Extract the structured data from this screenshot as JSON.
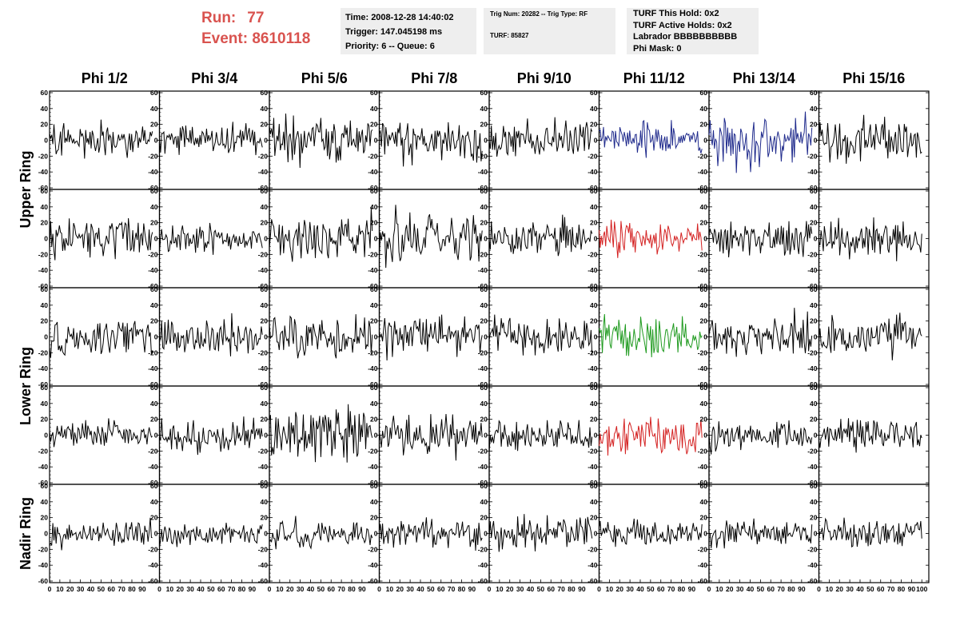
{
  "header": {
    "run_label": "Run:",
    "run_value": "77",
    "event_label": "Event:",
    "event_value": "8610118",
    "time": "Time: 2008-12-28 14:40:02",
    "trigger": "Trigger: 147.045198 ms",
    "priority": "Priority: 6 -- Queue: 6",
    "trig_num": "Trig Num: 20282 -- Trig Type: RF",
    "turf": "TURF: 85827",
    "turf_this_hold": "TURF This Hold: 0x2",
    "turf_active_holds": "TURF Active Holds: 0x2",
    "labrador": "Labrador BBBBBBBBBB",
    "phi_mask": "Phi Mask: 0"
  },
  "colors": {
    "header_red": "#d9534f",
    "info_bg": "#eeeeee",
    "trace_default": "#000000",
    "trace_blue": "#1f2a8c",
    "trace_red": "#d42222",
    "trace_green": "#1e9a1e"
  },
  "chart_data": {
    "type": "line",
    "columns": [
      "Phi 1/2",
      "Phi 3/4",
      "Phi 5/6",
      "Phi 7/8",
      "Phi 9/10",
      "Phi 11/12",
      "Phi 13/14",
      "Phi 15/16"
    ],
    "row_groups": [
      "Upper Ring",
      "Lower Ring",
      "Nadir Ring"
    ],
    "rows": 5,
    "xlim": [
      0,
      100
    ],
    "ylim": [
      -60,
      60
    ],
    "x_ticks": [
      0,
      10,
      20,
      30,
      40,
      50,
      60,
      70,
      80,
      90,
      100
    ],
    "y_ticks": [
      -60,
      -40,
      -20,
      0,
      20,
      40,
      60
    ],
    "samples_per_trace": 95,
    "amplitudes": [
      [
        13,
        12,
        16,
        17,
        14,
        13,
        21,
        17
      ],
      [
        15,
        11,
        19,
        21,
        13,
        13,
        14,
        15
      ],
      [
        13,
        14,
        16,
        14,
        15,
        14,
        17,
        14
      ],
      [
        11,
        12,
        21,
        15,
        11,
        15,
        12,
        14
      ],
      [
        12,
        10,
        12,
        11,
        12,
        11,
        11,
        11
      ]
    ],
    "highlight": [
      {
        "row": 0,
        "col": 5,
        "color": "#1f2a8c"
      },
      {
        "row": 0,
        "col": 6,
        "color": "#1f2a8c"
      },
      {
        "row": 1,
        "col": 5,
        "color": "#d42222"
      },
      {
        "row": 2,
        "col": 5,
        "color": "#1e9a1e"
      },
      {
        "row": 3,
        "col": 5,
        "color": "#d42222"
      }
    ]
  }
}
